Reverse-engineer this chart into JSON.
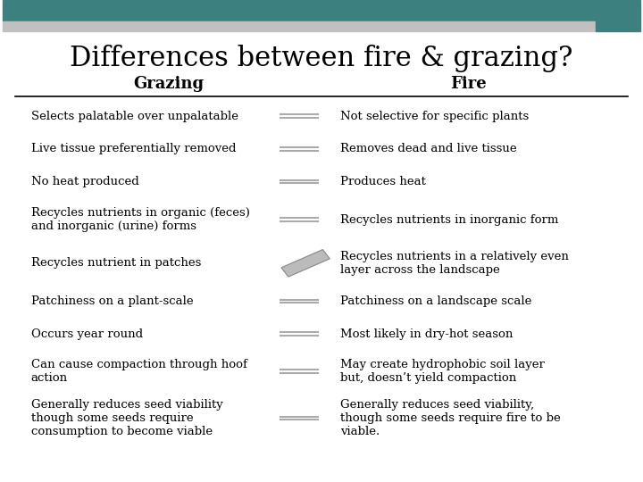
{
  "title": "Differences between fire & grazing?",
  "col1_header": "Grazing",
  "col2_header": "Fire",
  "header_bar_color1": "#3d8080",
  "header_bar_color2": "#c0c0c0",
  "rows": [
    {
      "grazing": "Selects palatable over unpalatable",
      "fire": "Not selective for specific plants",
      "arrow": "double"
    },
    {
      "grazing": "Live tissue preferentially removed",
      "fire": "Removes dead and live tissue",
      "arrow": "double"
    },
    {
      "grazing": "No heat produced",
      "fire": "Produces heat",
      "arrow": "double"
    },
    {
      "grazing": "Recycles nutrients in organic (feces)\nand inorganic (urine) forms",
      "fire": "Recycles nutrients in inorganic form",
      "arrow": "double"
    },
    {
      "grazing": "Recycles nutrient in patches",
      "fire": "Recycles nutrients in a relatively even\nlayer across the landscape",
      "arrow": "diagonal"
    },
    {
      "grazing": "Patchiness on a plant-scale",
      "fire": "Patchiness on a landscape scale",
      "arrow": "double"
    },
    {
      "grazing": "Occurs year round",
      "fire": "Most likely in dry-hot season",
      "arrow": "double"
    },
    {
      "grazing": "Can cause compaction through hoof\naction",
      "fire": "May create hydrophobic soil layer\nbut, doesn’t yield compaction",
      "arrow": "double"
    },
    {
      "grazing": "Generally reduces seed viability\nthough some seeds require\nconsumption to become viable",
      "fire": "Generally reduces seed viability,\nthough some seeds require fire to be\nviable.",
      "arrow": "double"
    }
  ]
}
